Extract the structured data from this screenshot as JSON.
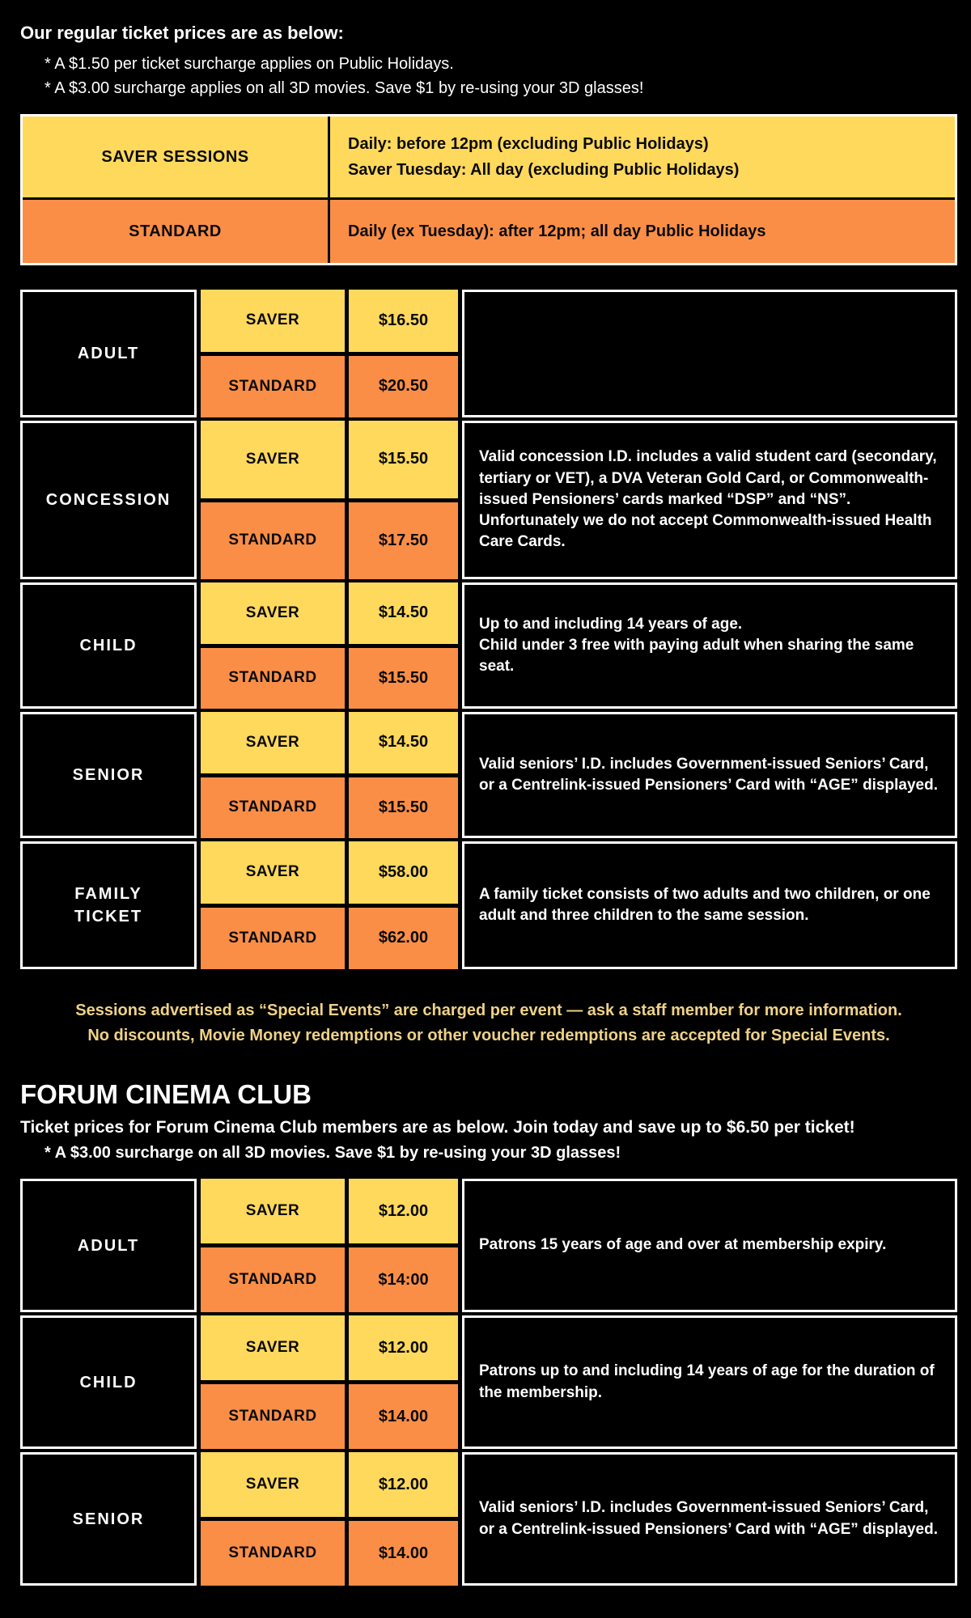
{
  "colors": {
    "yellow": "#FFD95C",
    "orange": "#FB8E47",
    "notice": "#EFD287"
  },
  "intro": {
    "title": "Our regular ticket prices are as below:",
    "notes": [
      "* A $1.50 per ticket surcharge applies on Public Holidays.",
      "* A $3.00 surcharge applies on all 3D movies. Save $1 by re-using your 3D glasses!"
    ]
  },
  "sessions": {
    "rows": [
      {
        "label": "SAVER SESSIONS",
        "desc": "Daily: before 12pm (excluding Public Holidays)\nSaver Tuesday: All day (excluding Public Holidays)"
      },
      {
        "label": "STANDARD",
        "desc": "Daily (ex Tuesday): after 12pm; all day Public Holidays"
      }
    ]
  },
  "regular": {
    "rows": [
      {
        "category": "ADULT",
        "saver_label": "SAVER",
        "saver_price": "$16.50",
        "standard_label": "STANDARD",
        "standard_price": "$20.50",
        "note": ""
      },
      {
        "category": "CONCESSION",
        "saver_label": "SAVER",
        "saver_price": "$15.50",
        "standard_label": "STANDARD",
        "standard_price": "$17.50",
        "note": "Valid concession I.D. includes a valid student card (secondary, tertiary or VET), a DVA Veteran Gold Card, or Commonwealth-issued Pensioners’ cards marked “DSP” and “NS”.\nUnfortunately we do not accept Commonwealth-issued Health Care Cards."
      },
      {
        "category": "CHILD",
        "saver_label": "SAVER",
        "saver_price": "$14.50",
        "standard_label": "STANDARD",
        "standard_price": "$15.50",
        "note": "Up to and including 14 years of age.\nChild under 3 free with paying adult when sharing the same seat."
      },
      {
        "category": "SENIOR",
        "saver_label": "SAVER",
        "saver_price": "$14.50",
        "standard_label": "STANDARD",
        "standard_price": "$15.50",
        "note": "Valid seniors’ I.D. includes Government-issued Seniors’ Card, or a Centrelink-issued Pensioners’ Card with “AGE” displayed."
      },
      {
        "category": "FAMILY\nTICKET",
        "saver_label": "SAVER",
        "saver_price": "$58.00",
        "standard_label": "STANDARD",
        "standard_price": "$62.00",
        "note": "A family ticket consists of two adults and two children, or one adult and three children to the same session."
      }
    ]
  },
  "special_events": {
    "line1": "Sessions advertised as “Special Events” are charged per event — ask a staff member for more information.",
    "line2": "No discounts, Movie Money redemptions or other voucher redemptions are accepted for Special Events."
  },
  "club": {
    "heading": "FORUM CINEMA CLUB",
    "subheading": "Ticket prices for Forum Cinema Club members are as below. Join today and save up to $6.50 per ticket!",
    "surcharge_note": "* A $3.00 surcharge on all 3D movies. Save $1 by re-using your 3D glasses!",
    "rows": [
      {
        "category": "ADULT",
        "saver_label": "SAVER",
        "saver_price": "$12.00",
        "standard_label": "STANDARD",
        "standard_price": "$14:00",
        "note": "Patrons 15 years of age and over at membership expiry."
      },
      {
        "category": "CHILD",
        "saver_label": "SAVER",
        "saver_price": "$12.00",
        "standard_label": "STANDARD",
        "standard_price": "$14.00",
        "note": "Patrons up to and including 14 years of age for the duration of the membership."
      },
      {
        "category": "SENIOR",
        "saver_label": "SAVER",
        "saver_price": "$12.00",
        "standard_label": "STANDARD",
        "standard_price": "$14.00",
        "note": "Valid seniors’ I.D. includes Government-issued Seniors’ Card, or a Centrelink-issued Pensioners’ Card with “AGE” displayed."
      }
    ]
  }
}
